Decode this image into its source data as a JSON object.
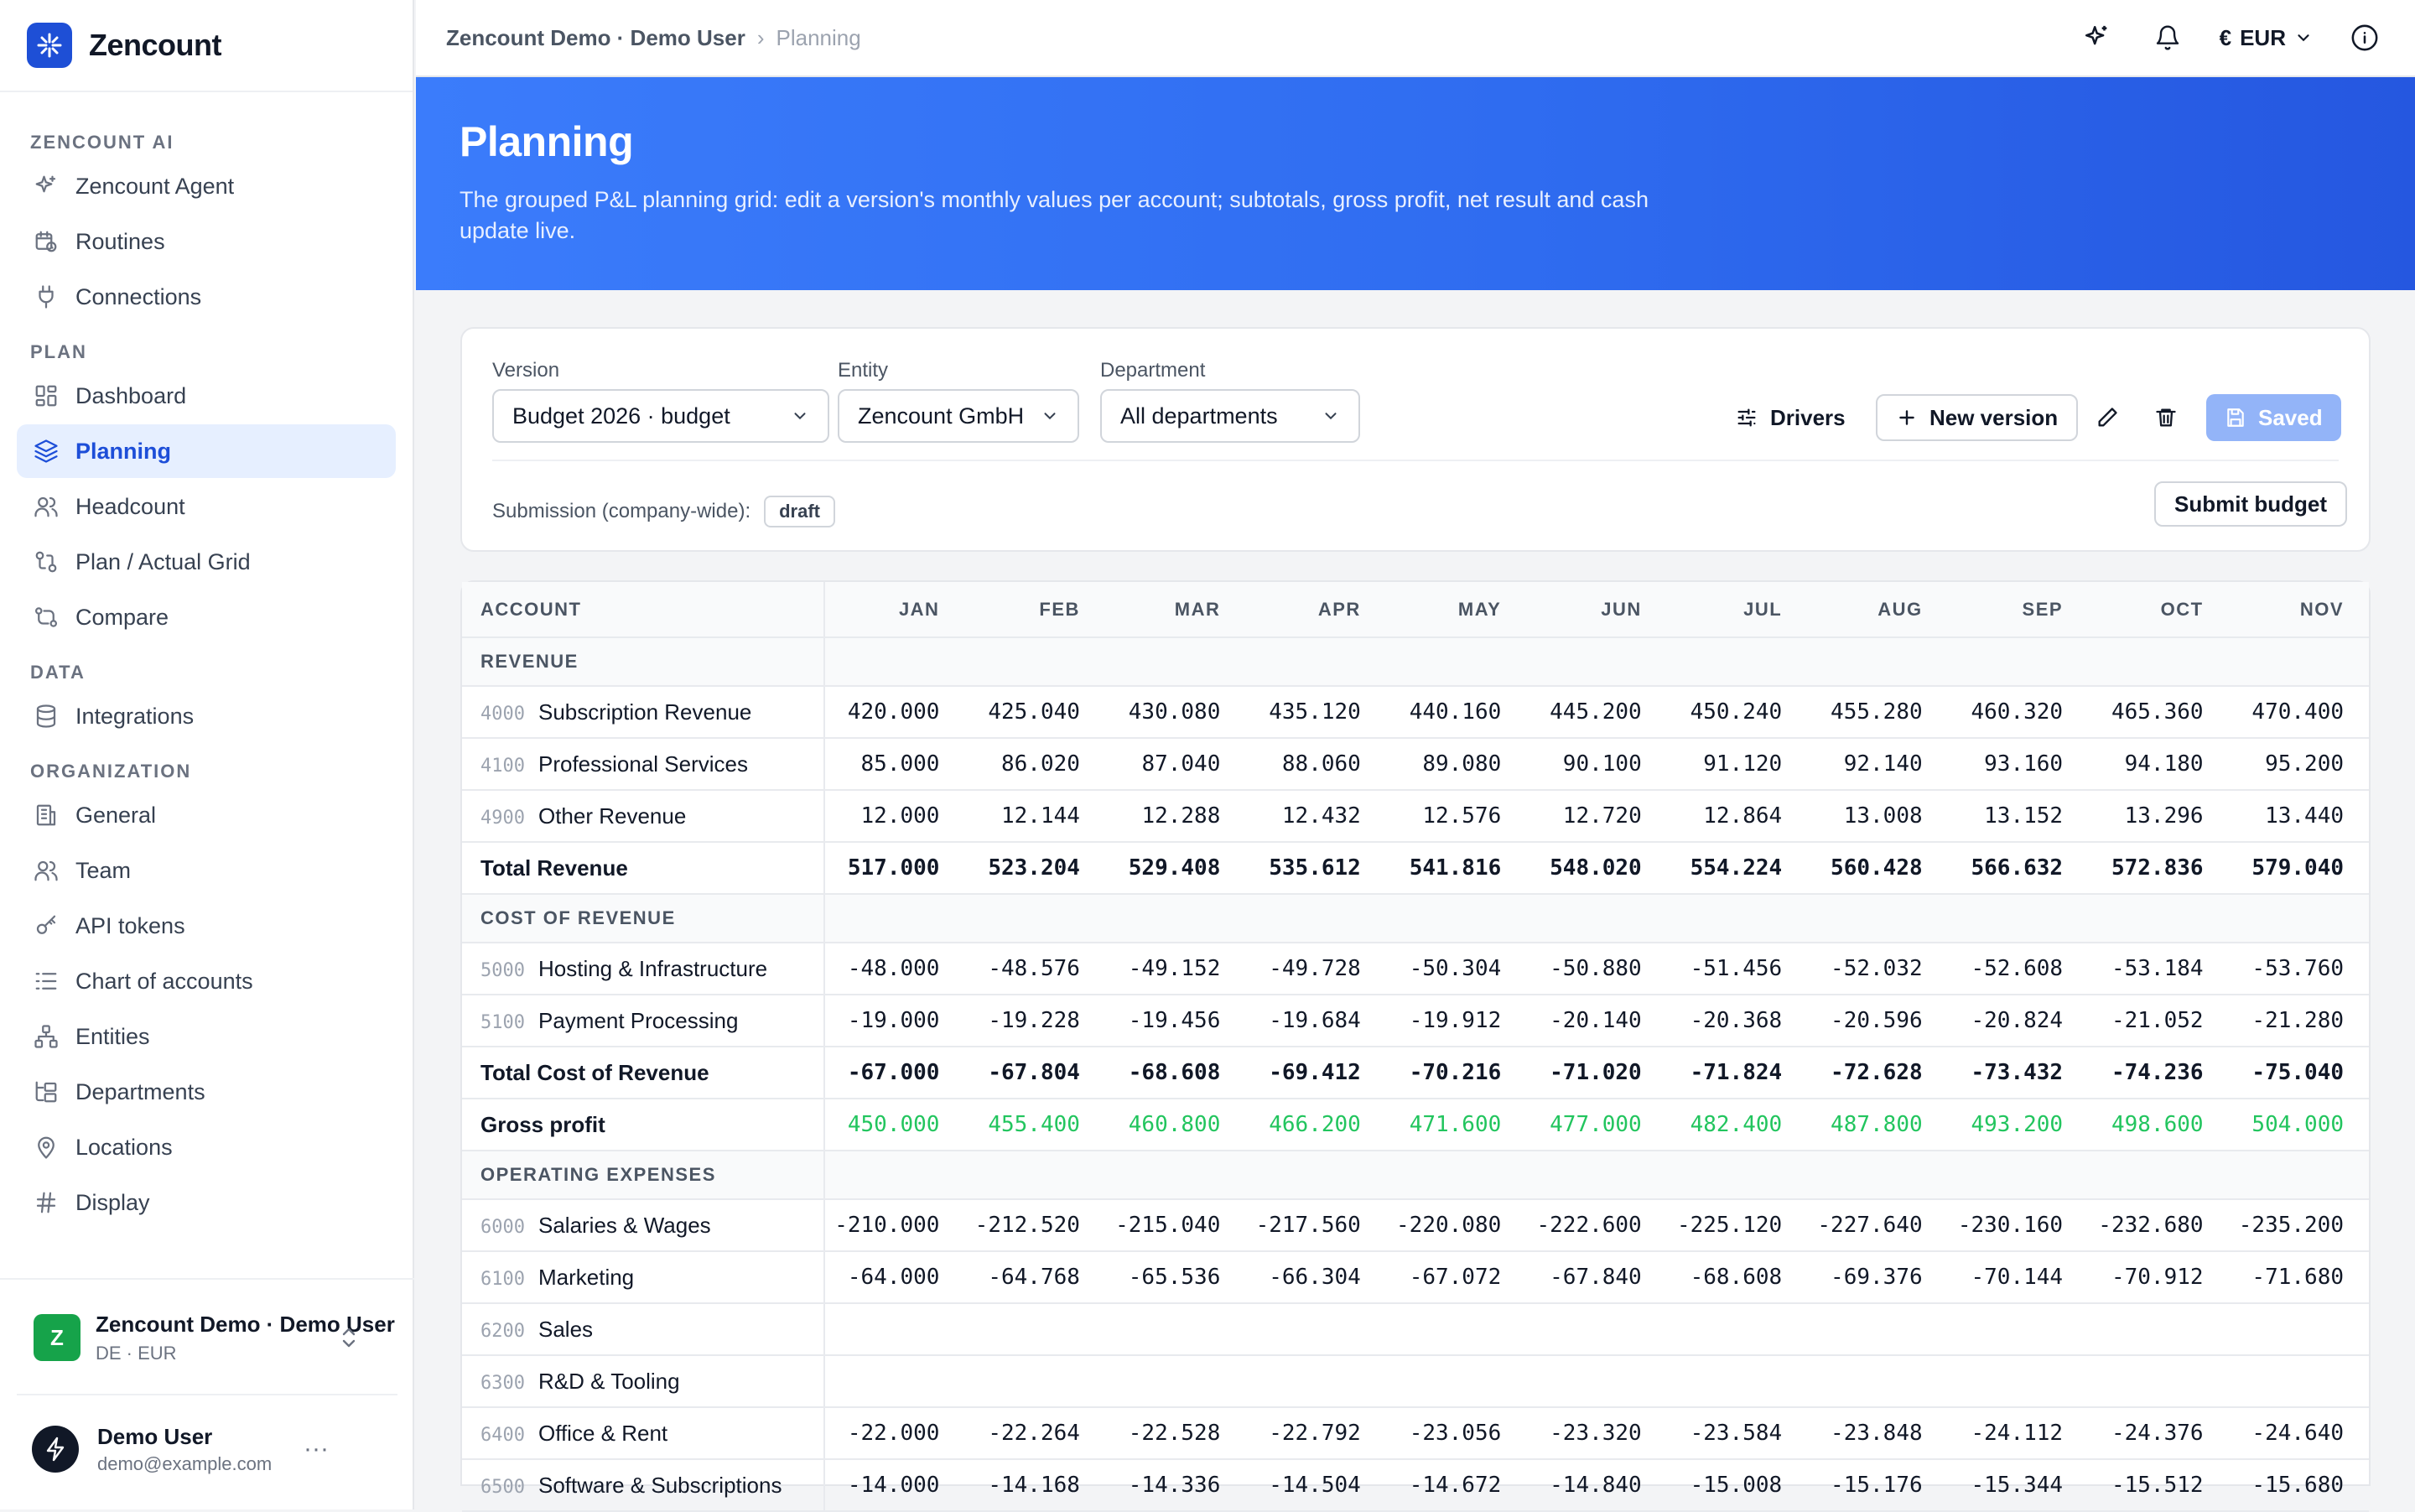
{
  "brand": {
    "name": "Zencount"
  },
  "sidebar": {
    "sections": [
      {
        "title": "ZENCOUNT AI",
        "items": [
          {
            "label": "Zencount Agent",
            "icon": "sparkle-icon"
          },
          {
            "label": "Routines",
            "icon": "calendar-clock-icon"
          },
          {
            "label": "Connections",
            "icon": "plug-icon"
          }
        ]
      },
      {
        "title": "PLAN",
        "items": [
          {
            "label": "Dashboard",
            "icon": "dashboard-icon"
          },
          {
            "label": "Planning",
            "icon": "layers-icon",
            "active": true
          },
          {
            "label": "Headcount",
            "icon": "users-icon"
          },
          {
            "label": "Plan / Actual Grid",
            "icon": "git-compare-icon"
          },
          {
            "label": "Compare",
            "icon": "compare-icon"
          }
        ]
      },
      {
        "title": "DATA",
        "items": [
          {
            "label": "Integrations",
            "icon": "database-icon"
          }
        ]
      },
      {
        "title": "ORGANIZATION",
        "items": [
          {
            "label": "General",
            "icon": "building-icon"
          },
          {
            "label": "Team",
            "icon": "users-icon"
          },
          {
            "label": "API tokens",
            "icon": "key-icon"
          },
          {
            "label": "Chart of accounts",
            "icon": "list-icon"
          },
          {
            "label": "Entities",
            "icon": "network-icon"
          },
          {
            "label": "Departments",
            "icon": "folder-tree-icon"
          },
          {
            "label": "Locations",
            "icon": "map-pin-icon"
          },
          {
            "label": "Display",
            "icon": "hash-icon"
          }
        ]
      }
    ],
    "org": {
      "avatar": "Z",
      "name": "Zencount Demo · Demo User",
      "sub": "DE · EUR"
    },
    "user": {
      "name": "Demo User",
      "email": "demo@example.com",
      "more": "···"
    }
  },
  "topbar": {
    "breadcrumb_org": "Zencount Demo · Demo User",
    "breadcrumb_sep": "›",
    "breadcrumb_page": "Planning",
    "currency_symbol": "€",
    "currency": "EUR"
  },
  "hero": {
    "title": "Planning",
    "description": "The grouped P&L planning grid: edit a version's monthly values per account; subtotals, gross profit, net result and cash update live."
  },
  "controls": {
    "version_label": "Version",
    "version_value": "Budget 2026 · budget",
    "entity_label": "Entity",
    "entity_value": "Zencount GmbH",
    "department_label": "Department",
    "department_value": "All departments",
    "drivers_label": "Drivers",
    "new_version_label": "New version",
    "saved_label": "Saved",
    "submission_label": "Submission (company-wide):",
    "submission_status": "draft",
    "submit_label": "Submit budget"
  },
  "grid": {
    "headers": [
      "ACCOUNT",
      "JAN",
      "FEB",
      "MAR",
      "APR",
      "MAY",
      "JUN",
      "JUL",
      "AUG",
      "SEP",
      "OCT",
      "NOV"
    ],
    "rows": [
      {
        "type": "section",
        "label": "REVENUE"
      },
      {
        "type": "account",
        "code": "4000",
        "label": "Subscription Revenue",
        "values": [
          "420.000",
          "425.040",
          "430.080",
          "435.120",
          "440.160",
          "445.200",
          "450.240",
          "455.280",
          "460.320",
          "465.360",
          "470.400"
        ]
      },
      {
        "type": "account",
        "code": "4100",
        "label": "Professional Services",
        "values": [
          "85.000",
          "86.020",
          "87.040",
          "88.060",
          "89.080",
          "90.100",
          "91.120",
          "92.140",
          "93.160",
          "94.180",
          "95.200"
        ]
      },
      {
        "type": "account",
        "code": "4900",
        "label": "Other Revenue",
        "values": [
          "12.000",
          "12.144",
          "12.288",
          "12.432",
          "12.576",
          "12.720",
          "12.864",
          "13.008",
          "13.152",
          "13.296",
          "13.440"
        ]
      },
      {
        "type": "total",
        "label": "Total Revenue",
        "values": [
          "517.000",
          "523.204",
          "529.408",
          "535.612",
          "541.816",
          "548.020",
          "554.224",
          "560.428",
          "566.632",
          "572.836",
          "579.040"
        ]
      },
      {
        "type": "section",
        "label": "COST OF REVENUE"
      },
      {
        "type": "account",
        "code": "5000",
        "label": "Hosting & Infrastructure",
        "values": [
          "-48.000",
          "-48.576",
          "-49.152",
          "-49.728",
          "-50.304",
          "-50.880",
          "-51.456",
          "-52.032",
          "-52.608",
          "-53.184",
          "-53.760"
        ]
      },
      {
        "type": "account",
        "code": "5100",
        "label": "Payment Processing",
        "values": [
          "-19.000",
          "-19.228",
          "-19.456",
          "-19.684",
          "-19.912",
          "-20.140",
          "-20.368",
          "-20.596",
          "-20.824",
          "-21.052",
          "-21.280"
        ]
      },
      {
        "type": "total",
        "label": "Total Cost of Revenue",
        "values": [
          "-67.000",
          "-67.804",
          "-68.608",
          "-69.412",
          "-70.216",
          "-71.020",
          "-71.824",
          "-72.628",
          "-73.432",
          "-74.236",
          "-75.040"
        ]
      },
      {
        "type": "gp",
        "label": "Gross profit",
        "values": [
          "450.000",
          "455.400",
          "460.800",
          "466.200",
          "471.600",
          "477.000",
          "482.400",
          "487.800",
          "493.200",
          "498.600",
          "504.000"
        ]
      },
      {
        "type": "section",
        "label": "OPERATING EXPENSES"
      },
      {
        "type": "account",
        "code": "6000",
        "label": "Salaries & Wages",
        "values": [
          "-210.000",
          "-212.520",
          "-215.040",
          "-217.560",
          "-220.080",
          "-222.600",
          "-225.120",
          "-227.640",
          "-230.160",
          "-232.680",
          "-235.200"
        ]
      },
      {
        "type": "account",
        "code": "6100",
        "label": "Marketing",
        "values": [
          "-64.000",
          "-64.768",
          "-65.536",
          "-66.304",
          "-67.072",
          "-67.840",
          "-68.608",
          "-69.376",
          "-70.144",
          "-70.912",
          "-71.680"
        ]
      },
      {
        "type": "account",
        "code": "6200",
        "label": "Sales",
        "values": [
          "",
          "",
          "",
          "",
          "",
          "",
          "",
          "",
          "",
          "",
          ""
        ]
      },
      {
        "type": "account",
        "code": "6300",
        "label": "R&D & Tooling",
        "values": [
          "",
          "",
          "",
          "",
          "",
          "",
          "",
          "",
          "",
          "",
          ""
        ]
      },
      {
        "type": "account",
        "code": "6400",
        "label": "Office & Rent",
        "values": [
          "-22.000",
          "-22.264",
          "-22.528",
          "-22.792",
          "-23.056",
          "-23.320",
          "-23.584",
          "-23.848",
          "-24.112",
          "-24.376",
          "-24.640"
        ]
      },
      {
        "type": "account",
        "code": "6500",
        "label": "Software & Subscriptions",
        "values": [
          "-14.000",
          "-14.168",
          "-14.336",
          "-14.504",
          "-14.672",
          "-14.840",
          "-15.008",
          "-15.176",
          "-15.344",
          "-15.512",
          "-15.680"
        ]
      }
    ]
  }
}
